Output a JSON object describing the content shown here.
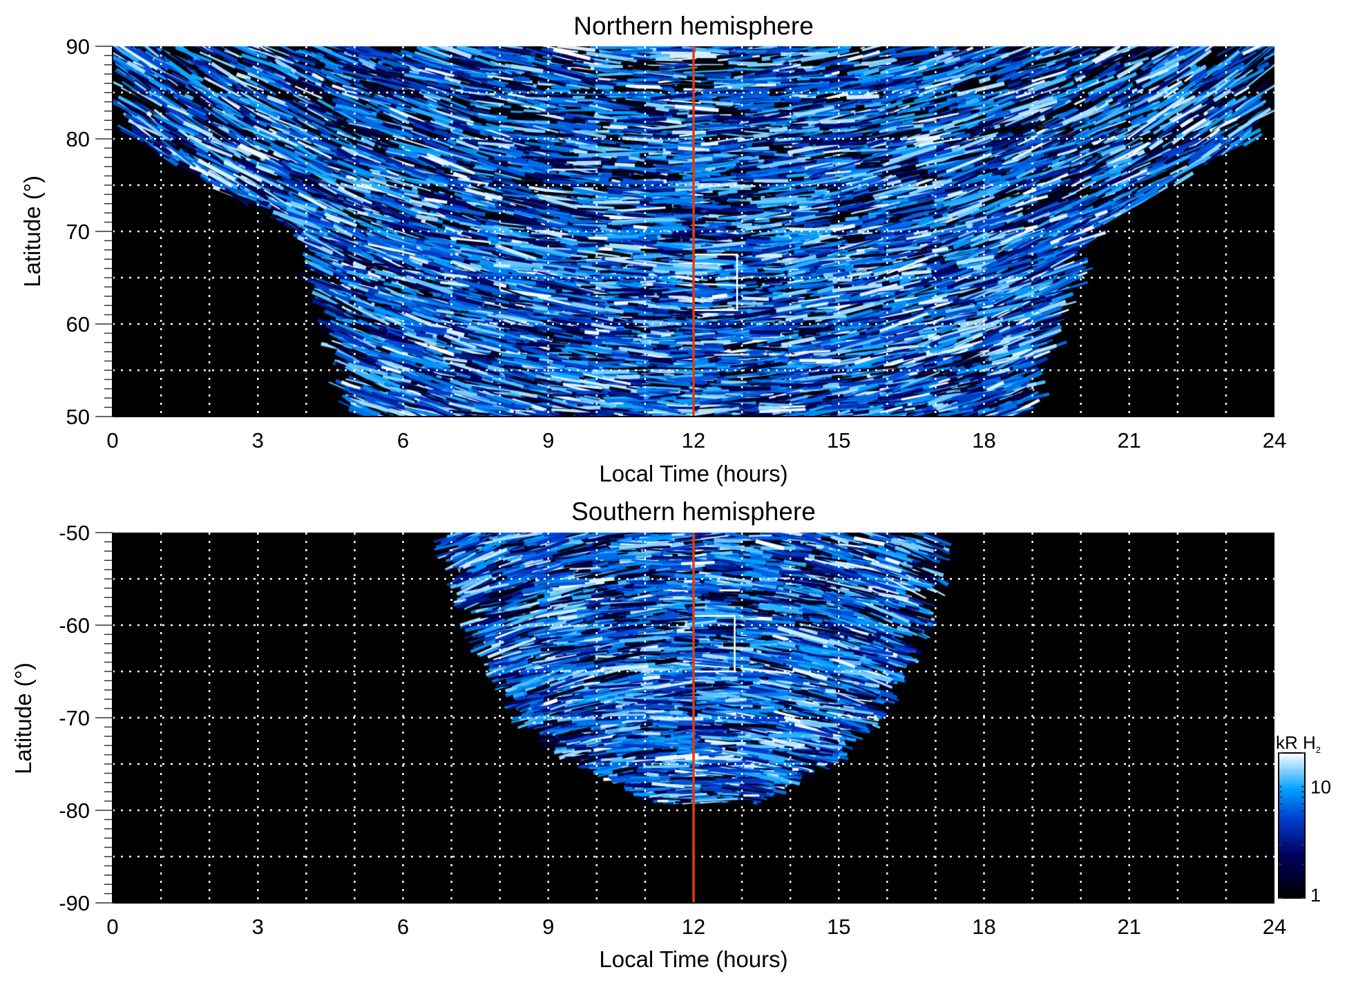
{
  "chart_data": [
    {
      "type": "heatmap",
      "title": "Northern hemisphere",
      "xlabel": "Local Time (hours)",
      "ylabel": "Latitude (°)",
      "xlim": [
        0,
        24
      ],
      "ylim": [
        50,
        90
      ],
      "xticks": [
        0,
        3,
        6,
        9,
        12,
        15,
        18,
        21,
        24
      ],
      "yticks": [
        50,
        60,
        70,
        80,
        90
      ],
      "grid": true,
      "marker_line_local_time": 12,
      "marker_line_color": "#e03a10",
      "box": {
        "lt": [
          12,
          12.9
        ],
        "lat": [
          61.5,
          67.5
        ]
      },
      "coverage": {
        "lat": [
          50,
          60,
          70,
          80,
          90
        ],
        "lt_min": [
          5.0,
          4.6,
          3.8,
          0.4,
          0
        ],
        "lt_max": [
          18.8,
          19.4,
          20.2,
          23.6,
          24
        ]
      }
    },
    {
      "type": "heatmap",
      "title": "Southern hemisphere",
      "xlabel": "Local Time (hours)",
      "ylabel": "Latitude (°)",
      "xlim": [
        0,
        24
      ],
      "ylim": [
        -90,
        -50
      ],
      "xticks": [
        0,
        3,
        6,
        9,
        12,
        15,
        18,
        21,
        24
      ],
      "yticks": [
        -50,
        -60,
        -70,
        -80,
        -90
      ],
      "grid": true,
      "marker_line_local_time": 12,
      "marker_line_color": "#e03a10",
      "box": {
        "lt": [
          12,
          12.85
        ],
        "lat": [
          -65,
          -59
        ]
      },
      "coverage": {
        "lat": [
          -50,
          -60,
          -70,
          -75,
          -79
        ],
        "lt_min": [
          7.0,
          7.6,
          8.6,
          10.0,
          11.5
        ],
        "lt_max": [
          17.0,
          16.6,
          15.6,
          14.4,
          13.0
        ]
      }
    }
  ],
  "colorbar": {
    "label": "kR H",
    "label_sub": "2",
    "ticks": [
      {
        "value": 1,
        "label": "1"
      },
      {
        "value": 10,
        "label": "10"
      }
    ],
    "range": [
      1,
      20
    ],
    "scale": "log",
    "colors": [
      "#000000",
      "#000060",
      "#0040d0",
      "#00a0ff",
      "#ffffff"
    ]
  }
}
